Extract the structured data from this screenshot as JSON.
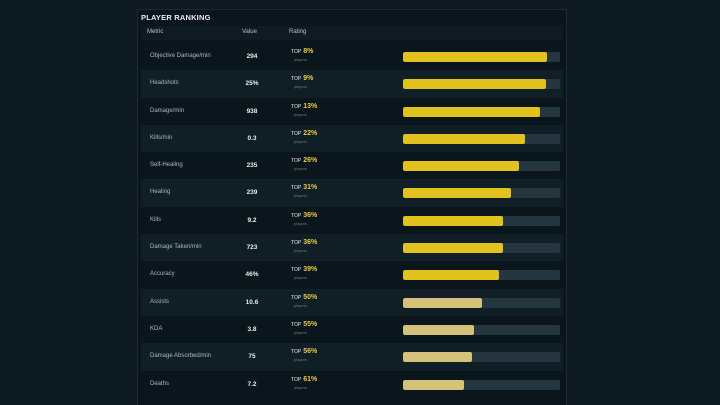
{
  "panel": {
    "title": "PLAYER RANKING",
    "columns": {
      "metric": "Metric",
      "value": "Value",
      "rating": "Rating"
    }
  },
  "colors": {
    "bar_strong": "#e2c21f",
    "bar_weak": "#d5c27a",
    "track": "#263640"
  },
  "rows": [
    {
      "metric": "Objective Damage/min",
      "value": "294",
      "top_label": "TOP",
      "pct": "8%",
      "sub": "players",
      "fill": 0.92
    },
    {
      "metric": "Headshots",
      "value": "25%",
      "top_label": "TOP",
      "pct": "9%",
      "sub": "players",
      "fill": 0.91
    },
    {
      "metric": "Damage/min",
      "value": "938",
      "top_label": "TOP",
      "pct": "13%",
      "sub": "players",
      "fill": 0.87
    },
    {
      "metric": "Kills/min",
      "value": "0.3",
      "top_label": "TOP",
      "pct": "22%",
      "sub": "players",
      "fill": 0.78
    },
    {
      "metric": "Self-Healing",
      "value": "235",
      "top_label": "TOP",
      "pct": "26%",
      "sub": "players",
      "fill": 0.74
    },
    {
      "metric": "Healing",
      "value": "239",
      "top_label": "TOP",
      "pct": "31%",
      "sub": "players",
      "fill": 0.69
    },
    {
      "metric": "Kills",
      "value": "9.2",
      "top_label": "TOP",
      "pct": "36%",
      "sub": "players",
      "fill": 0.64
    },
    {
      "metric": "Damage Taken/min",
      "value": "723",
      "top_label": "TOP",
      "pct": "36%",
      "sub": "players",
      "fill": 0.64
    },
    {
      "metric": "Accuracy",
      "value": "46%",
      "top_label": "TOP",
      "pct": "39%",
      "sub": "players",
      "fill": 0.61
    },
    {
      "metric": "Assists",
      "value": "10.6",
      "top_label": "TOP",
      "pct": "50%",
      "sub": "players",
      "fill": 0.5
    },
    {
      "metric": "KDA",
      "value": "3.8",
      "top_label": "TOP",
      "pct": "55%",
      "sub": "players",
      "fill": 0.45
    },
    {
      "metric": "Damage Absorbed/min",
      "value": "75",
      "top_label": "TOP",
      "pct": "56%",
      "sub": "players",
      "fill": 0.44
    },
    {
      "metric": "Deaths",
      "value": "7.2",
      "top_label": "TOP",
      "pct": "61%",
      "sub": "players",
      "fill": 0.39
    }
  ]
}
